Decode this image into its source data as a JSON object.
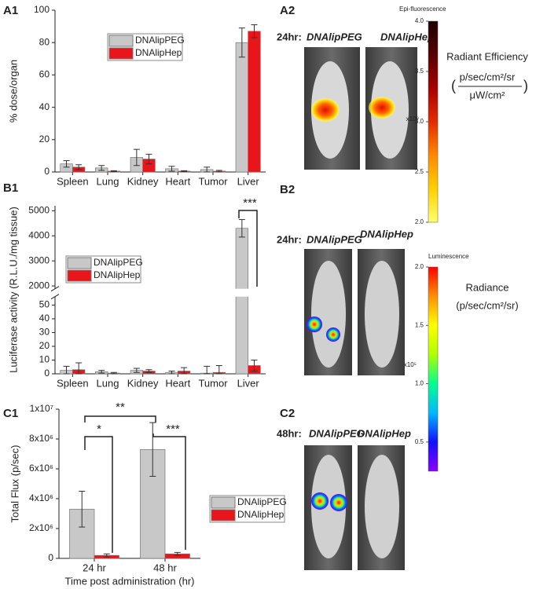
{
  "chart_data": [
    {
      "type": "bar",
      "panel": "A1",
      "ylabel": "% dose/organ",
      "categories": [
        "Spleen",
        "Lung",
        "Kidney",
        "Heart",
        "Tumor",
        "Liver"
      ],
      "series": [
        {
          "name": "DNAlipPEG",
          "color": "#c8c8c8",
          "values": [
            5,
            2.5,
            9,
            2,
            1.5,
            80
          ],
          "errors": [
            2,
            1.5,
            5,
            1.5,
            1.5,
            9
          ]
        },
        {
          "name": "DNAlipHep",
          "color": "#e8151b",
          "values": [
            3,
            0.5,
            8,
            0.5,
            0.5,
            87
          ],
          "errors": [
            1.5,
            0.3,
            3,
            0.3,
            0.5,
            4
          ]
        }
      ],
      "ylim": [
        0,
        100
      ],
      "yticks": [
        0,
        20,
        40,
        60,
        80,
        100
      ]
    },
    {
      "type": "bar",
      "panel": "B1",
      "ylabel": "Luciferase activity (R.L.U./mg tissue)",
      "categories": [
        "Spleen",
        "Lung",
        "Kidney",
        "Heart",
        "Tumor",
        "Liver"
      ],
      "series": [
        {
          "name": "DNAlipPEG",
          "color": "#c8c8c8",
          "values": [
            2.5,
            1.5,
            2.5,
            1,
            0.5,
            4300
          ],
          "errors": [
            3,
            1,
            1.5,
            1,
            5,
            350
          ]
        },
        {
          "name": "DNAlipHep",
          "color": "#e8151b",
          "values": [
            3,
            0.5,
            2,
            2,
            1,
            6
          ],
          "errors": [
            5,
            0.5,
            1,
            2.5,
            5,
            4
          ]
        }
      ],
      "ylim": [
        0,
        5200
      ],
      "axis_break": [
        55,
        1950
      ],
      "yticks": [
        0,
        10,
        20,
        30,
        40,
        50,
        2000,
        3000,
        4000,
        5000
      ],
      "annotations": [
        "***"
      ]
    },
    {
      "type": "bar",
      "panel": "C1",
      "ylabel": "Total Flux (p/sec)",
      "xlabel": "Time post administration (hr)",
      "categories": [
        "24 hr",
        "48 hr"
      ],
      "series": [
        {
          "name": "DNAlipPEG",
          "color": "#c8c8c8",
          "values": [
            3300000,
            7300000
          ],
          "errors": [
            1200000,
            1800000
          ]
        },
        {
          "name": "DNAlipHep",
          "color": "#e8151b",
          "values": [
            200000,
            300000
          ],
          "errors": [
            100000,
            100000
          ]
        }
      ],
      "ylim": [
        0,
        10000000
      ],
      "yticks": [
        0,
        {
          "value": 2000000,
          "label": "2x10⁶"
        },
        {
          "value": 4000000,
          "label": "4x10⁶"
        },
        {
          "value": 6000000,
          "label": "6x10⁶"
        },
        {
          "value": 8000000,
          "label": "8x10⁶"
        },
        {
          "value": 10000000,
          "label": "1x10⁷"
        }
      ],
      "annotations": [
        "**",
        "*",
        "***"
      ]
    }
  ],
  "images": [
    {
      "panel": "A2",
      "time": "24hr:",
      "labels": [
        "DNAlipPEG",
        "DNAlipHep"
      ]
    },
    {
      "panel": "B2",
      "time": "24hr:",
      "labels": [
        "DNAlipPEG",
        "DNAlipHep"
      ]
    },
    {
      "panel": "C2",
      "time": "48hr:",
      "labels": [
        "DNAlipPEG",
        "DNAlipHep"
      ]
    }
  ],
  "colorbars": [
    {
      "title": "Epi-fluorescence",
      "lines": [
        "Radiant Efficiency",
        "p/sec/cm²/sr",
        "μW/cm²"
      ],
      "brackets": [
        "(",
        ")"
      ],
      "multiplier": "x10⁹",
      "lim": [
        2,
        4
      ],
      "ticks": [
        {
          "value": 2,
          "label": "2.0"
        },
        {
          "value": 2.5,
          "label": "2.5"
        },
        {
          "value": 3,
          "label": "3.0"
        },
        {
          "value": 3.5,
          "label": "3.5"
        },
        {
          "value": 4,
          "label": "4.0"
        }
      ],
      "colors": [
        "#ffff70",
        "#ffd000",
        "#ff8a00",
        "#e52a00",
        "#a80000",
        "#560000",
        "#200000"
      ]
    },
    {
      "title": "Luminescence",
      "lines": [
        "Radiance",
        "(p/sec/cm²/sr)"
      ],
      "multiplier": "x10⁵",
      "lim": [
        0.25,
        2
      ],
      "ticks": [
        {
          "value": 0.5,
          "label": "0.5"
        },
        {
          "value": 1,
          "label": "1.0"
        },
        {
          "value": 1.5,
          "label": "1.5"
        },
        {
          "value": 2,
          "label": "2.0"
        }
      ],
      "colors": [
        "#8a00ff",
        "#1010ff",
        "#00b8ff",
        "#00ff90",
        "#b0ff00",
        "#ffff00",
        "#ff9000",
        "#ff0000"
      ]
    }
  ]
}
